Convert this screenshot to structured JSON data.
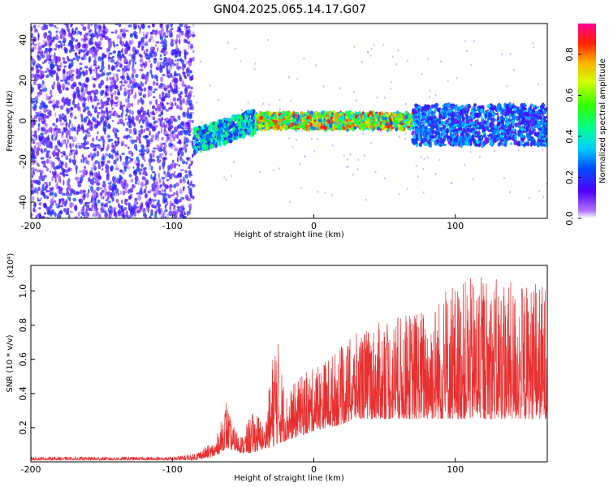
{
  "title": "GN04.2025.065.14.17.G07",
  "chart_data": [
    {
      "type": "heatmap",
      "xlabel": "Height of straight line (km)",
      "ylabel": "Frequency (Hz)",
      "xlim": [
        -200,
        165
      ],
      "ylim": [
        -48,
        48
      ],
      "xticks": [
        -200,
        -100,
        0,
        100
      ],
      "yticks": [
        -40,
        -20,
        0,
        20,
        40
      ],
      "colorbar": {
        "label": "Normalized spectral amplitude",
        "range": [
          0,
          0.95
        ],
        "ticks": [
          0.0,
          0.2,
          0.4,
          0.6,
          0.8
        ]
      },
      "regions": [
        {
          "x_range": [
            -200,
            -85
          ],
          "freq_center": 0,
          "freq_halfwidth": 48,
          "amplitude": 0.12
        },
        {
          "x_range": [
            -85,
            -40
          ],
          "freq_center_start": -10,
          "freq_center_end": 0,
          "freq_halfwidth": 6,
          "amplitude": 0.35
        },
        {
          "x_range": [
            -40,
            70
          ],
          "freq_center": 0,
          "freq_halfwidth": 4,
          "amplitude": 0.6
        },
        {
          "x_range": [
            70,
            165
          ],
          "freq_center": -2,
          "freq_halfwidth": 10,
          "amplitude": 0.25
        }
      ]
    },
    {
      "type": "line",
      "xlabel": "Height of straight line (km)",
      "ylabel": "SNR (10 * v/v)",
      "y_multiplier": "(x10⁴)",
      "xlim": [
        -200,
        165
      ],
      "ylim": [
        0,
        1.15
      ],
      "xticks": [
        -200,
        -100,
        0,
        100
      ],
      "yticks": [
        0.2,
        0.4,
        0.6,
        0.8,
        1.0
      ],
      "series_color": "#e83030",
      "envelope": {
        "x": [
          -200,
          -100,
          -85,
          -70,
          -65,
          -62,
          -58,
          -50,
          -45,
          -40,
          -35,
          -30,
          -27,
          -20,
          -10,
          0,
          10,
          20,
          30,
          40,
          60,
          80,
          100,
          120,
          140,
          165
        ],
        "low": [
          0.01,
          0.01,
          0.01,
          0.03,
          0.06,
          0.08,
          0.07,
          0.05,
          0.05,
          0.06,
          0.08,
          0.08,
          0.1,
          0.12,
          0.15,
          0.18,
          0.2,
          0.22,
          0.25,
          0.25,
          0.25,
          0.25,
          0.25,
          0.25,
          0.25,
          0.25
        ],
        "high": [
          0.03,
          0.03,
          0.05,
          0.12,
          0.25,
          0.38,
          0.22,
          0.15,
          0.28,
          0.3,
          0.2,
          0.55,
          0.83,
          0.4,
          0.5,
          0.55,
          0.62,
          0.68,
          0.75,
          0.8,
          0.85,
          0.92,
          1.05,
          1.1,
          1.05,
          1.05
        ]
      }
    }
  ]
}
